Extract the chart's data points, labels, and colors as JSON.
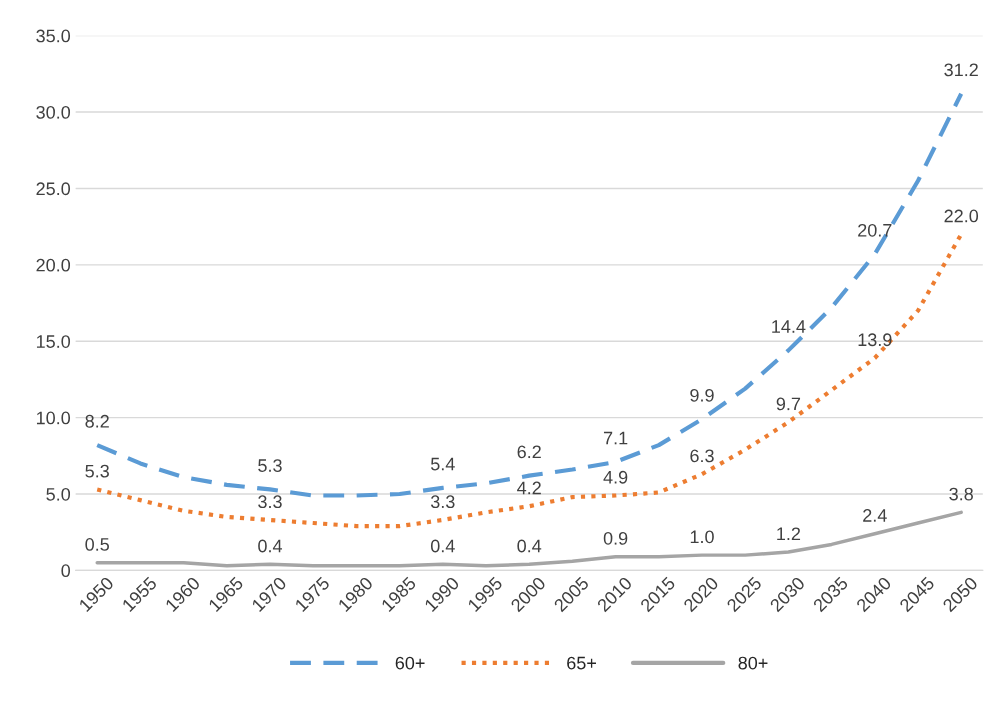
{
  "chart_data": {
    "type": "line",
    "categories": [
      "1950",
      "1955",
      "1960",
      "1965",
      "1970",
      "1975",
      "1980",
      "1985",
      "1990",
      "1995",
      "2000",
      "2005",
      "2010",
      "2015",
      "2020",
      "2025",
      "2030",
      "2035",
      "2040",
      "2045",
      "2050"
    ],
    "series": [
      {
        "name": "60+",
        "color": "#5b9bd5",
        "line_style": "dashed",
        "values": [
          8.2,
          7.0,
          6.1,
          5.6,
          5.3,
          4.9,
          4.9,
          5.0,
          5.4,
          5.7,
          6.2,
          6.6,
          7.1,
          8.2,
          9.9,
          11.9,
          14.4,
          17.2,
          20.7,
          25.5,
          31.2
        ],
        "value_labels": [
          "8.2",
          null,
          null,
          null,
          "5.3",
          null,
          null,
          null,
          "5.4",
          null,
          "6.2",
          null,
          "7.1",
          null,
          "9.9",
          null,
          "14.4",
          null,
          "20.7",
          null,
          "31.2"
        ]
      },
      {
        "name": "65+",
        "color": "#ed7d31",
        "line_style": "dotted",
        "values": [
          5.3,
          4.6,
          3.9,
          3.5,
          3.3,
          3.1,
          2.9,
          2.9,
          3.3,
          3.8,
          4.2,
          4.8,
          4.9,
          5.1,
          6.3,
          7.9,
          9.7,
          11.8,
          13.9,
          17.0,
          22.0
        ],
        "value_labels": [
          "5.3",
          null,
          null,
          null,
          "3.3",
          null,
          null,
          null,
          "3.3",
          null,
          "4.2",
          null,
          "4.9",
          null,
          "6.3",
          null,
          "9.7",
          null,
          "13.9",
          null,
          "22.0"
        ]
      },
      {
        "name": "80+",
        "color": "#a5a5a5",
        "line_style": "solid",
        "values": [
          0.5,
          0.5,
          0.5,
          0.3,
          0.4,
          0.3,
          0.3,
          0.3,
          0.4,
          0.3,
          0.4,
          0.6,
          0.9,
          0.9,
          1.0,
          1.0,
          1.2,
          1.7,
          2.4,
          3.1,
          3.8
        ],
        "value_labels": [
          "0.5",
          null,
          null,
          null,
          "0.4",
          null,
          null,
          null,
          "0.4",
          null,
          "0.4",
          null,
          "0.9",
          null,
          "1.0",
          null,
          "1.2",
          null,
          "2.4",
          null,
          "3.8"
        ]
      }
    ],
    "ylim": [
      0,
      35
    ],
    "yticks": [
      {
        "value": 0,
        "label": "0"
      },
      {
        "value": 5,
        "label": "5.0"
      },
      {
        "value": 10,
        "label": "10.0"
      },
      {
        "value": 15,
        "label": "15.0"
      },
      {
        "value": 20,
        "label": "20.0"
      },
      {
        "value": 25,
        "label": "25.0"
      },
      {
        "value": 30,
        "label": "30.0"
      },
      {
        "value": 35,
        "label": "35.0"
      }
    ],
    "grid": "y",
    "legend": "bottom"
  }
}
